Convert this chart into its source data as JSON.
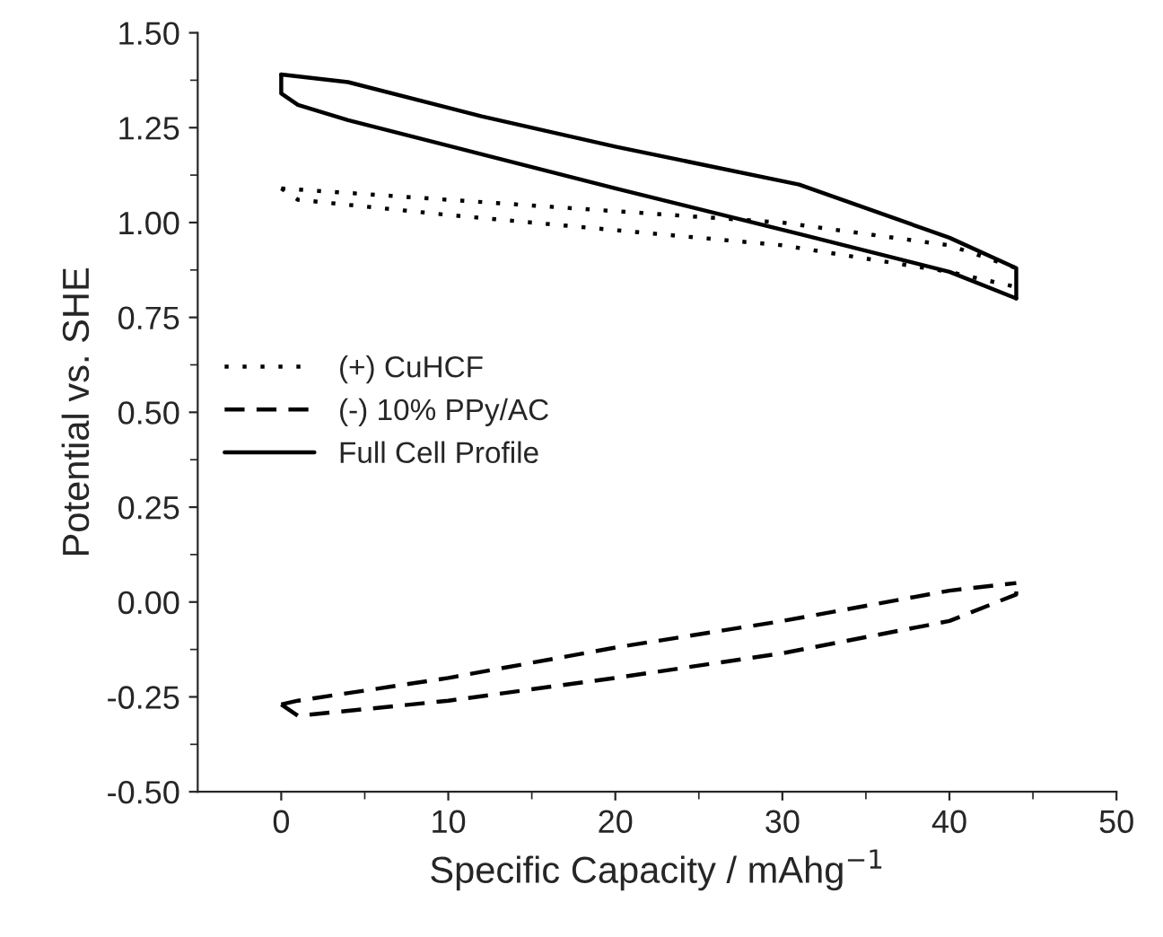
{
  "chart_data": {
    "type": "line",
    "xlabel": "Specific Capacity / mAhg$^{−1}$",
    "ylabel": "Potential vs. SHE",
    "xlim": [
      -5,
      50
    ],
    "xticks": [
      0,
      10,
      20,
      30,
      40,
      50
    ],
    "ylim": [
      -0.5,
      1.5
    ],
    "yticks": [
      {
        "value": -0.5,
        "label": "-0.50"
      },
      {
        "value": -0.25,
        "label": "-0.25"
      },
      {
        "value": 0,
        "label": "0.00"
      },
      {
        "value": 0.25,
        "label": "0.25"
      },
      {
        "value": 0.5,
        "label": "0.50"
      },
      {
        "value": 0.75,
        "label": "0.75"
      },
      {
        "value": 1.0,
        "label": "1.00"
      },
      {
        "value": 1.25,
        "label": "1.25"
      },
      {
        "value": 1.5,
        "label": "1.50"
      }
    ],
    "grid": false,
    "legend": "center left",
    "marker": "none",
    "series": [
      {
        "name": "(+) CuHCF",
        "color": "#000000",
        "line_style": "dotted",
        "x": [
          0,
          10,
          20,
          30,
          40,
          44
        ],
        "values": [
          1.09,
          1.06,
          1.03,
          1.0,
          0.94,
          0.88
        ]
      },
      {
        "color": "#000000",
        "line_style": "dotted",
        "x": [
          0,
          1,
          10,
          20,
          30,
          40,
          44
        ],
        "values": [
          1.09,
          1.06,
          1.02,
          0.98,
          0.94,
          0.87,
          0.83
        ]
      },
      {
        "name": "(-) 10% PPy/AC",
        "color": "#000000",
        "line_style": "dashed",
        "x": [
          0,
          1,
          10,
          20,
          30,
          40,
          44
        ],
        "values": [
          -0.27,
          -0.26,
          -0.2,
          -0.12,
          -0.05,
          0.03,
          0.05
        ]
      },
      {
        "color": "#000000",
        "line_style": "dashed",
        "x": [
          0,
          1,
          10,
          20,
          30,
          40,
          44,
          44
        ],
        "values": [
          -0.27,
          -0.3,
          -0.26,
          -0.2,
          -0.135,
          -0.05,
          0.02,
          0.05
        ]
      },
      {
        "name": "Full Cell Profile",
        "color": "#000000",
        "line_style": "solid",
        "x": [
          0,
          4,
          12,
          20,
          31,
          40,
          44,
          44
        ],
        "values": [
          1.39,
          1.37,
          1.28,
          1.2,
          1.1,
          0.96,
          0.88,
          0.8
        ]
      },
      {
        "color": "#000000",
        "line_style": "solid",
        "x": [
          0,
          0,
          1,
          4,
          12,
          20,
          31,
          40,
          44
        ],
        "values": [
          1.39,
          1.34,
          1.31,
          1.27,
          1.18,
          1.09,
          0.97,
          0.87,
          0.8
        ]
      }
    ]
  }
}
